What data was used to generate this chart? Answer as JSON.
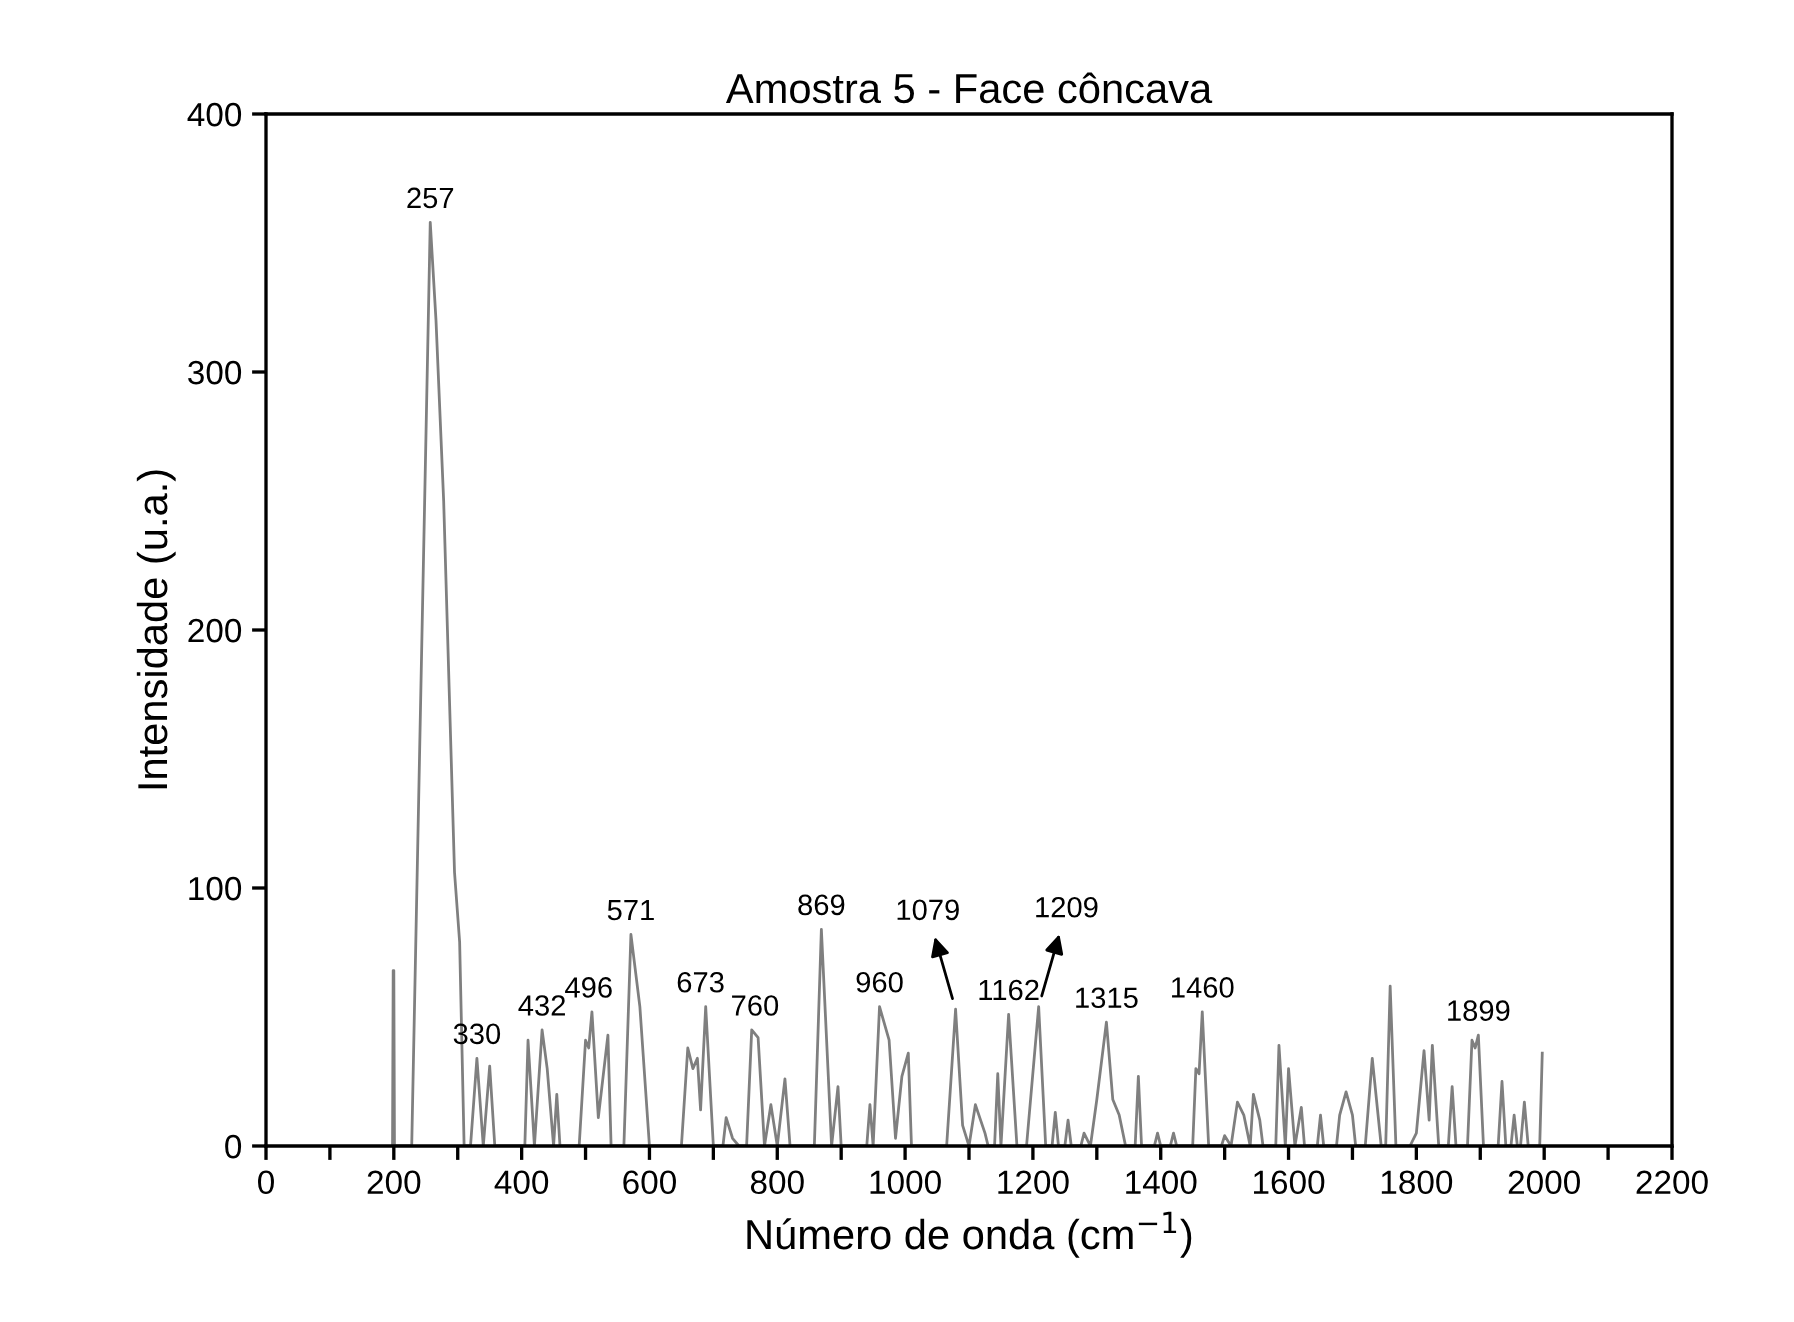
{
  "chart_data": {
    "type": "line",
    "title": "Amostra 5 - Face côncava",
    "xlabel": "Número de onda (cm$^{−1}$)",
    "ylabel": "Intensidade (u.a.)",
    "series": [
      {
        "color": "#7f7f7f",
        "x": [
          198,
          199,
          200,
          201,
          228,
          257,
          266,
          278,
          295,
          303,
          310,
          320,
          330,
          340,
          350,
          358,
          405,
          410,
          420,
          432,
          440,
          450,
          455,
          460,
          490,
          500,
          505,
          510,
          520,
          535,
          540,
          560,
          571,
          585,
          600,
          650,
          660,
          668,
          675,
          680,
          688,
          700,
          715,
          720,
          730,
          740,
          752,
          760,
          770,
          780,
          790,
          800,
          812,
          820,
          858,
          869,
          885,
          895,
          900,
          940,
          945,
          950,
          960,
          975,
          985,
          995,
          1005,
          1010,
          1065,
          1079,
          1090,
          1100,
          1110,
          1125,
          1130,
          1140,
          1145,
          1150,
          1162,
          1175,
          1190,
          1209,
          1220,
          1230,
          1235,
          1240,
          1250,
          1255,
          1260,
          1275,
          1280,
          1290,
          1300,
          1315,
          1325,
          1335,
          1345,
          1360,
          1365,
          1370,
          1390,
          1395,
          1400,
          1415,
          1420,
          1425,
          1450,
          1455,
          1460,
          1465,
          1475,
          1495,
          1500,
          1510,
          1520,
          1530,
          1540,
          1545,
          1555,
          1560,
          1580,
          1585,
          1595,
          1600,
          1610,
          1620,
          1625,
          1645,
          1650,
          1655,
          1675,
          1680,
          1690,
          1700,
          1705,
          1720,
          1731,
          1745,
          1752,
          1759,
          1768,
          1790,
          1800,
          1812,
          1820,
          1825,
          1835,
          1850,
          1856,
          1862,
          1880,
          1887,
          1892,
          1897,
          1905,
          1928,
          1934,
          1940,
          1948,
          1953,
          1958,
          1963,
          1969,
          1975,
          1993,
          1997
        ],
        "values": [
          0,
          68,
          68,
          0,
          0,
          358,
          320,
          250,
          106,
          79,
          0,
          0,
          34,
          0,
          31,
          0,
          0,
          41,
          0,
          45,
          30,
          0,
          20,
          0,
          0,
          41,
          38,
          52,
          11,
          43,
          0,
          0,
          82,
          54,
          0,
          0,
          38,
          30,
          34,
          14,
          54,
          0,
          0,
          11,
          3,
          0,
          0,
          45,
          42,
          0,
          16,
          0,
          26,
          0,
          0,
          84,
          0,
          23,
          0,
          0,
          16,
          0,
          54,
          41,
          3,
          27,
          36,
          0,
          0,
          53,
          8,
          0,
          16,
          5,
          0,
          0,
          28,
          0,
          51,
          0,
          0,
          54,
          0,
          0,
          13,
          0,
          0,
          10,
          0,
          0,
          5,
          0,
          18,
          48,
          18,
          12,
          0,
          0,
          27,
          0,
          0,
          5,
          0,
          0,
          5,
          0,
          0,
          30,
          28,
          52,
          0,
          0,
          4,
          0,
          17,
          12,
          0,
          20,
          10,
          0,
          0,
          39,
          0,
          30,
          0,
          15,
          0,
          0,
          12,
          0,
          0,
          12,
          21,
          12,
          0,
          0,
          34,
          0,
          0,
          62,
          0,
          0,
          5,
          37,
          10,
          39,
          0,
          0,
          23,
          0,
          0,
          41,
          38,
          43,
          0,
          0,
          25,
          0,
          0,
          12,
          0,
          0,
          17,
          0,
          0,
          36
        ]
      }
    ],
    "annotations": [
      {
        "text": "257",
        "x": 257,
        "y": 358
      },
      {
        "text": "330",
        "x": 330,
        "y": 34
      },
      {
        "text": "432",
        "x": 432,
        "y": 45
      },
      {
        "text": "496",
        "x": 505,
        "y": 52
      },
      {
        "text": "571",
        "x": 571,
        "y": 82
      },
      {
        "text": "673",
        "x": 680,
        "y": 54
      },
      {
        "text": "760",
        "x": 765,
        "y": 45
      },
      {
        "text": "869",
        "x": 869,
        "y": 84
      },
      {
        "text": "960",
        "x": 960,
        "y": 54
      },
      {
        "text": "1079",
        "x": 1079,
        "y": 53
      },
      {
        "text": "1162",
        "x": 1162,
        "y": 51
      },
      {
        "text": "1209",
        "x": 1209,
        "y": 54
      },
      {
        "text": "1315",
        "x": 1315,
        "y": 48
      },
      {
        "text": "1460",
        "x": 1465,
        "y": 52
      },
      {
        "text": "1899",
        "x": 1897,
        "y": 43
      }
    ],
    "xlim": [
      0,
      2200
    ],
    "ylim": [
      0,
      400
    ],
    "xticks": [
      0,
      {
        "value": 100,
        "label": null
      },
      200,
      {
        "value": 300,
        "label": null
      },
      400,
      {
        "value": 500,
        "label": null
      },
      600,
      {
        "value": 700,
        "label": null
      },
      800,
      {
        "value": 900,
        "label": null
      },
      1000,
      {
        "value": 1100,
        "label": null
      },
      1200,
      {
        "value": 1300,
        "label": null
      },
      1400,
      {
        "value": 1500,
        "label": null
      },
      1600,
      {
        "value": 1700,
        "label": null
      },
      1800,
      {
        "value": 1900,
        "label": null
      },
      2000,
      {
        "value": 2100,
        "label": null
      },
      2200
    ],
    "yticks": [
      0,
      100,
      200,
      300,
      400
    ],
    "grid": false,
    "legend": false,
    "marker": "none",
    "line_style": "solid"
  }
}
